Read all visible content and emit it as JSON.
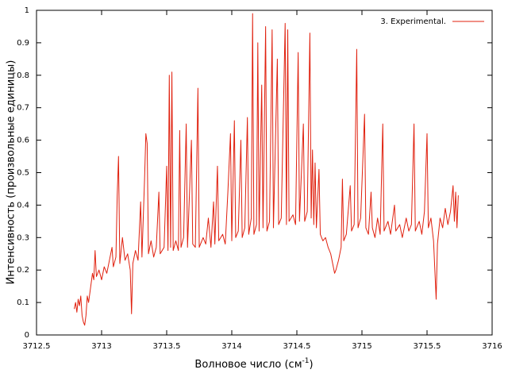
{
  "chart_data": {
    "type": "line",
    "xlabel": [
      "Волновое число (см",
      "-1",
      ")"
    ],
    "ylabel": "Интенсивность (произвольные единицы)",
    "xlim": [
      3712.5,
      3716
    ],
    "xticks": [
      3712.5,
      3713,
      3713.5,
      3714,
      3714.5,
      3715,
      3715.5,
      3716
    ],
    "ylim": [
      0,
      1
    ],
    "yticks": [
      0,
      0.1,
      0.2,
      0.3,
      0.4,
      0.5,
      0.6,
      0.7,
      0.8,
      0.9,
      1
    ],
    "legend": "top-right",
    "x": [
      3712.79,
      3712.8,
      3712.81,
      3712.82,
      3712.83,
      3712.84,
      3712.85,
      3712.86,
      3712.87,
      3712.88,
      3712.89,
      3712.9,
      3712.92,
      3712.93,
      3712.94,
      3712.95,
      3712.96,
      3712.98,
      3713.0,
      3713.02,
      3713.04,
      3713.06,
      3713.08,
      3713.09,
      3713.11,
      3713.12,
      3713.13,
      3713.14,
      3713.16,
      3713.18,
      3713.2,
      3713.22,
      3713.23,
      3713.24,
      3713.26,
      3713.28,
      3713.3,
      3713.31,
      3713.33,
      3713.34,
      3713.35,
      3713.36,
      3713.38,
      3713.4,
      3713.42,
      3713.44,
      3713.45,
      3713.48,
      3713.5,
      3713.51,
      3713.52,
      3713.53,
      3713.54,
      3713.55,
      3713.57,
      3713.59,
      3713.6,
      3713.61,
      3713.63,
      3713.65,
      3713.66,
      3713.69,
      3713.7,
      3713.72,
      3713.74,
      3713.75,
      3713.78,
      3713.8,
      3713.82,
      3713.84,
      3713.86,
      3713.87,
      3713.89,
      3713.9,
      3713.93,
      3713.95,
      3713.97,
      3713.99,
      3714.0,
      3714.02,
      3714.03,
      3714.05,
      3714.07,
      3714.08,
      3714.1,
      3714.12,
      3714.13,
      3714.15,
      3714.16,
      3714.17,
      3714.19,
      3714.2,
      3714.21,
      3714.23,
      3714.24,
      3714.26,
      3714.27,
      3714.29,
      3714.31,
      3714.32,
      3714.35,
      3714.36,
      3714.38,
      3714.41,
      3714.42,
      3714.43,
      3714.44,
      3714.47,
      3714.49,
      3714.51,
      3714.52,
      3714.55,
      3714.56,
      3714.58,
      3714.6,
      3714.61,
      3714.62,
      3714.63,
      3714.64,
      3714.65,
      3714.67,
      3714.68,
      3714.7,
      3714.72,
      3714.74,
      3714.76,
      3714.78,
      3714.79,
      3714.8,
      3714.82,
      3714.84,
      3714.85,
      3714.86,
      3714.88,
      3714.91,
      3714.92,
      3714.94,
      3714.96,
      3714.97,
      3714.99,
      3715.02,
      3715.03,
      3715.05,
      3715.07,
      3715.08,
      3715.1,
      3715.12,
      3715.14,
      3715.16,
      3715.17,
      3715.2,
      3715.22,
      3715.25,
      3715.26,
      3715.29,
      3715.31,
      3715.34,
      3715.36,
      3715.38,
      3715.4,
      3715.41,
      3715.44,
      3715.46,
      3715.48,
      3715.5,
      3715.51,
      3715.53,
      3715.55,
      3715.56,
      3715.57,
      3715.58,
      3715.6,
      3715.62,
      3715.64,
      3715.66,
      3715.68,
      3715.7,
      3715.71,
      3715.72,
      3715.73,
      3715.74
    ],
    "series": [
      {
        "name": "3. Experimental.",
        "color": "#e0200e",
        "values": [
          0.08,
          0.1,
          0.07,
          0.11,
          0.09,
          0.12,
          0.06,
          0.04,
          0.03,
          0.06,
          0.12,
          0.1,
          0.16,
          0.19,
          0.17,
          0.26,
          0.18,
          0.2,
          0.17,
          0.21,
          0.19,
          0.23,
          0.27,
          0.21,
          0.24,
          0.43,
          0.55,
          0.22,
          0.3,
          0.23,
          0.25,
          0.2,
          0.065,
          0.22,
          0.26,
          0.23,
          0.41,
          0.24,
          0.48,
          0.62,
          0.59,
          0.25,
          0.29,
          0.24,
          0.27,
          0.44,
          0.25,
          0.27,
          0.52,
          0.26,
          0.8,
          0.27,
          0.81,
          0.26,
          0.29,
          0.26,
          0.63,
          0.27,
          0.3,
          0.65,
          0.27,
          0.6,
          0.28,
          0.27,
          0.76,
          0.27,
          0.3,
          0.28,
          0.36,
          0.27,
          0.41,
          0.28,
          0.52,
          0.29,
          0.31,
          0.28,
          0.44,
          0.62,
          0.29,
          0.66,
          0.3,
          0.32,
          0.6,
          0.3,
          0.33,
          0.67,
          0.31,
          0.36,
          0.99,
          0.31,
          0.34,
          0.9,
          0.32,
          0.77,
          0.33,
          0.95,
          0.32,
          0.35,
          0.94,
          0.33,
          0.85,
          0.34,
          0.36,
          0.96,
          0.34,
          0.94,
          0.35,
          0.37,
          0.34,
          0.87,
          0.35,
          0.65,
          0.35,
          0.38,
          0.93,
          0.36,
          0.57,
          0.34,
          0.53,
          0.33,
          0.51,
          0.31,
          0.29,
          0.3,
          0.27,
          0.25,
          0.21,
          0.19,
          0.2,
          0.23,
          0.27,
          0.48,
          0.29,
          0.31,
          0.46,
          0.32,
          0.34,
          0.88,
          0.33,
          0.36,
          0.68,
          0.33,
          0.31,
          0.44,
          0.33,
          0.3,
          0.36,
          0.31,
          0.65,
          0.32,
          0.35,
          0.31,
          0.4,
          0.32,
          0.34,
          0.3,
          0.36,
          0.32,
          0.34,
          0.65,
          0.32,
          0.35,
          0.31,
          0.38,
          0.62,
          0.33,
          0.36,
          0.29,
          0.2,
          0.11,
          0.28,
          0.36,
          0.33,
          0.39,
          0.34,
          0.38,
          0.46,
          0.35,
          0.44,
          0.33,
          0.43
        ]
      }
    ]
  }
}
